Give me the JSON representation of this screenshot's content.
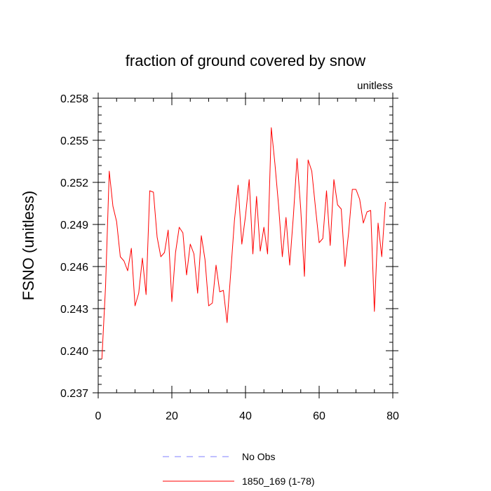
{
  "chart_data": {
    "type": "line",
    "title": "fraction of ground covered by snow",
    "units_label": "unitless",
    "xlabel": "",
    "ylabel": "FSNO  (unitless)",
    "xlim": [
      0,
      80
    ],
    "ylim": [
      0.237,
      0.258
    ],
    "x_ticks": [
      0,
      20,
      40,
      60,
      80
    ],
    "x_tick_labels": [
      "0",
      "20",
      "40",
      "60",
      "80"
    ],
    "y_ticks": [
      0.237,
      0.24,
      0.243,
      0.246,
      0.249,
      0.252,
      0.255,
      0.258
    ],
    "y_tick_labels": [
      "0.237",
      "0.240",
      "0.243",
      "0.246",
      "0.249",
      "0.252",
      "0.255",
      "0.258"
    ],
    "series": [
      {
        "name": "1850_169 (1-78)",
        "color": "#ff0000",
        "x": [
          1,
          2,
          3,
          4,
          5,
          6,
          7,
          8,
          9,
          10,
          11,
          12,
          13,
          14,
          15,
          16,
          17,
          18,
          19,
          20,
          21,
          22,
          23,
          24,
          25,
          26,
          27,
          28,
          29,
          30,
          31,
          32,
          33,
          34,
          35,
          36,
          37,
          38,
          39,
          40,
          41,
          42,
          43,
          44,
          45,
          46,
          47,
          48,
          49,
          50,
          51,
          52,
          53,
          54,
          55,
          56,
          57,
          58,
          59,
          60,
          61,
          62,
          63,
          64,
          65,
          66,
          67,
          68,
          69,
          70,
          71,
          72,
          73,
          74,
          75,
          76,
          77,
          78
        ],
        "values": [
          0.2394,
          0.2446,
          0.2528,
          0.2503,
          0.2492,
          0.2467,
          0.2464,
          0.2457,
          0.2473,
          0.2432,
          0.2441,
          0.2466,
          0.244,
          0.2514,
          0.2513,
          0.2481,
          0.2467,
          0.247,
          0.2486,
          0.2435,
          0.247,
          0.2488,
          0.2484,
          0.2454,
          0.2476,
          0.2469,
          0.2441,
          0.2482,
          0.2465,
          0.2432,
          0.2434,
          0.2461,
          0.2442,
          0.2443,
          0.242,
          0.2456,
          0.2493,
          0.2518,
          0.2476,
          0.2496,
          0.2522,
          0.2469,
          0.251,
          0.2471,
          0.2488,
          0.2469,
          0.2559,
          0.2533,
          0.2503,
          0.2467,
          0.2495,
          0.2461,
          0.2496,
          0.2537,
          0.2501,
          0.2453,
          0.2536,
          0.2528,
          0.2502,
          0.2477,
          0.248,
          0.2514,
          0.2475,
          0.2522,
          0.2504,
          0.2501,
          0.246,
          0.2484,
          0.2515,
          0.2515,
          0.2508,
          0.2491,
          0.2499,
          0.25,
          0.2428,
          0.2491,
          0.2467,
          0.2506
        ]
      }
    ],
    "legend": [
      {
        "label": "No Obs",
        "color": "#8080ff",
        "style": "dashed"
      },
      {
        "label": "1850_169 (1-78)",
        "color": "#ff0000",
        "style": "solid"
      }
    ]
  }
}
